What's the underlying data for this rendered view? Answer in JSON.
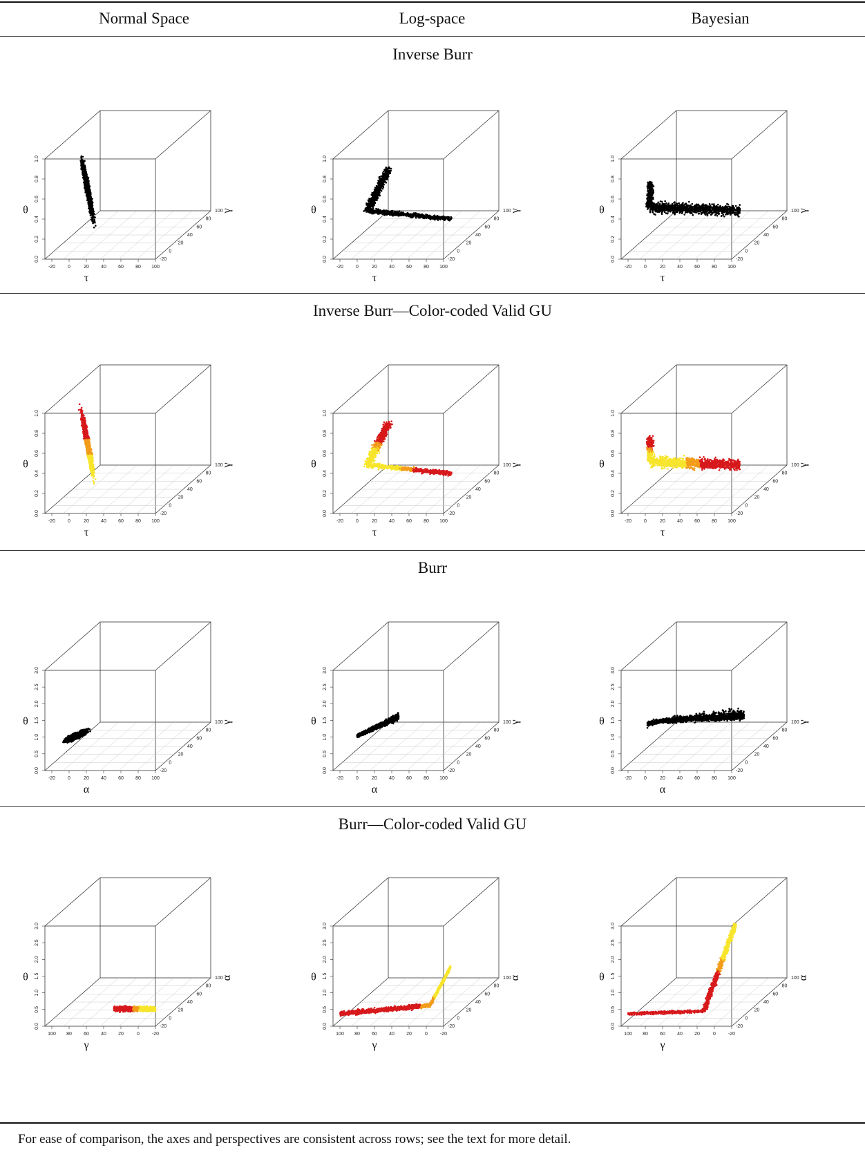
{
  "columns": [
    "Normal Space",
    "Log-space",
    "Bayesian"
  ],
  "sections": [
    {
      "title": "Inverse Burr",
      "axes": {
        "x": "τ",
        "y": "γ",
        "z": "θ"
      },
      "x_ticks": [
        "-20",
        "0",
        "20",
        "40",
        "60",
        "80",
        "100"
      ],
      "y_ticks": [
        "-20",
        "0",
        "20",
        "40",
        "60",
        "80",
        "100"
      ],
      "z_ticks": [
        "0.0",
        "0.2",
        "0.4",
        "0.6",
        "0.8",
        "1.0"
      ],
      "colors": [
        "#000000"
      ],
      "panels": [
        {
          "column": "Normal Space",
          "cloud": "black ellipse"
        },
        {
          "column": "Log-space",
          "cloud": "black curved arc"
        },
        {
          "column": "Bayesian",
          "cloud": "black band"
        }
      ]
    },
    {
      "title": "Inverse Burr—Color-coded Valid GU",
      "axes": {
        "x": "τ",
        "y": "γ",
        "z": "θ"
      },
      "x_ticks": [
        "-20",
        "0",
        "20",
        "40",
        "60",
        "80",
        "100"
      ],
      "y_ticks": [
        "-20",
        "0",
        "20",
        "40",
        "60",
        "80",
        "100"
      ],
      "z_ticks": [
        "0.0",
        "0.2",
        "0.4",
        "0.6",
        "0.8",
        "1.0"
      ],
      "colors": [
        "#d7191c",
        "#f7e52c",
        "#f39c1a"
      ],
      "panels": [
        {
          "column": "Normal Space",
          "cloud": "red/yellow ellipse"
        },
        {
          "column": "Log-space",
          "cloud": "red/yellow arc"
        },
        {
          "column": "Bayesian",
          "cloud": "yellow/red band"
        }
      ]
    },
    {
      "title": "Burr",
      "axes": {
        "x": "α",
        "y": "γ",
        "z": "θ"
      },
      "x_ticks": [
        "-20",
        "0",
        "20",
        "40",
        "60",
        "80",
        "100"
      ],
      "y_ticks": [
        "-20",
        "0",
        "20",
        "40",
        "60",
        "80",
        "100"
      ],
      "z_ticks": [
        "0.0",
        "0.5",
        "1.0",
        "1.5",
        "2.0",
        "2.5",
        "3.0"
      ],
      "colors": [
        "#000000"
      ],
      "panels": [
        {
          "column": "Normal Space",
          "cloud": "black ellipse"
        },
        {
          "column": "Log-space",
          "cloud": "black wedge"
        },
        {
          "column": "Bayesian",
          "cloud": "black band"
        }
      ]
    },
    {
      "title": "Burr—Color-coded Valid GU",
      "axes": {
        "x": "γ",
        "y": "α",
        "z": "θ"
      },
      "x_ticks": [
        "100",
        "80",
        "60",
        "40",
        "20",
        "0",
        "-20"
      ],
      "y_ticks": [
        "-20",
        "0",
        "20",
        "40",
        "60",
        "80",
        "100"
      ],
      "z_ticks": [
        "0.0",
        "0.5",
        "1.0",
        "1.5",
        "2.0",
        "2.5",
        "3.0"
      ],
      "colors": [
        "#d7191c",
        "#f7e52c",
        "#f39c1a"
      ],
      "panels": [
        {
          "column": "Normal Space",
          "cloud": "yellow/red ellipse"
        },
        {
          "column": "Log-space",
          "cloud": "yellow/red wedge"
        },
        {
          "column": "Bayesian",
          "cloud": "yellow/red rising band"
        }
      ]
    }
  ],
  "footnote": "For ease of comparison, the axes and perspectives are consistent across rows; see the text for more detail."
}
